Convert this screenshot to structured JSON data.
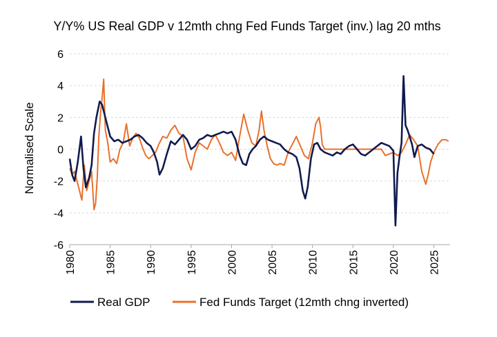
{
  "chart_data": {
    "type": "line",
    "title": "Y/Y% US Real GDP v 12mth chng Fed Funds Target (inv.) lag 20 mths",
    "ylabel": "Normalised Scale",
    "xlabel": "",
    "xlim": [
      1980,
      2027
    ],
    "ylim": [
      -6,
      6
    ],
    "yticks": [
      "6",
      "4",
      "2",
      "0",
      "-2",
      "-4",
      "-6"
    ],
    "xticks": [
      "1980",
      "1985",
      "1990",
      "1995",
      "2000",
      "2005",
      "2010",
      "2015",
      "2020",
      "2025"
    ],
    "grid": "horizontal dashed",
    "legend_position": "bottom",
    "colors": {
      "real_gdp": "#101a4e",
      "fed_funds": "#e8702a",
      "grid": "#d9d9d9",
      "axis": "#a6a6a6"
    },
    "series": [
      {
        "name": "Real GDP",
        "color": "#101a4e",
        "x": [
          1980.0,
          1980.3,
          1980.6,
          1981.0,
          1981.4,
          1981.7,
          1982.0,
          1982.4,
          1982.7,
          1983.0,
          1983.3,
          1983.7,
          1984.0,
          1984.3,
          1984.7,
          1985.0,
          1985.5,
          1986.0,
          1986.5,
          1987.0,
          1987.5,
          1988.0,
          1988.5,
          1989.0,
          1989.5,
          1990.0,
          1990.4,
          1990.8,
          1991.1,
          1991.5,
          1992.0,
          1992.5,
          1993.0,
          1993.5,
          1994.0,
          1994.5,
          1995.0,
          1995.5,
          1996.0,
          1996.5,
          1997.0,
          1997.5,
          1998.0,
          1998.5,
          1999.0,
          1999.5,
          2000.0,
          2000.5,
          2001.0,
          2001.4,
          2001.8,
          2002.2,
          2002.6,
          2003.0,
          2003.5,
          2004.0,
          2004.5,
          2005.0,
          2005.5,
          2006.0,
          2006.5,
          2007.0,
          2007.5,
          2008.0,
          2008.4,
          2008.8,
          2009.1,
          2009.4,
          2009.8,
          2010.2,
          2010.6,
          2011.0,
          2011.5,
          2012.0,
          2012.5,
          2013.0,
          2013.5,
          2014.0,
          2014.5,
          2015.0,
          2015.5,
          2016.0,
          2016.5,
          2017.0,
          2017.5,
          2018.0,
          2018.5,
          2019.0,
          2019.5,
          2020.0,
          2020.25,
          2020.5,
          2020.75,
          2021.0,
          2021.25,
          2021.5,
          2021.75,
          2022.0,
          2022.3,
          2022.6,
          2023.0,
          2023.5,
          2024.0,
          2024.5,
          2025.0
        ],
        "y": [
          -0.6,
          -1.6,
          -2.0,
          -0.8,
          0.8,
          -1.2,
          -2.4,
          -1.8,
          -1.0,
          1.0,
          2.0,
          3.0,
          2.8,
          2.2,
          1.4,
          0.8,
          0.5,
          0.6,
          0.4,
          0.5,
          0.6,
          0.8,
          0.9,
          0.7,
          0.4,
          0.2,
          -0.2,
          -0.8,
          -1.6,
          -1.2,
          -0.3,
          0.5,
          0.3,
          0.6,
          0.9,
          0.6,
          0.0,
          0.2,
          0.6,
          0.7,
          0.9,
          0.8,
          0.9,
          1.0,
          1.1,
          1.0,
          1.1,
          0.6,
          -0.4,
          -0.9,
          -1.0,
          -0.3,
          0.0,
          0.2,
          0.6,
          0.8,
          0.6,
          0.5,
          0.4,
          0.3,
          0.0,
          -0.2,
          -0.3,
          -0.5,
          -1.2,
          -2.6,
          -3.1,
          -2.4,
          -0.6,
          0.3,
          0.4,
          0.0,
          -0.2,
          -0.3,
          -0.4,
          -0.2,
          -0.3,
          0.0,
          0.2,
          0.3,
          0.0,
          -0.3,
          -0.4,
          -0.2,
          0.0,
          0.2,
          0.4,
          0.3,
          0.2,
          -0.1,
          -4.8,
          -1.5,
          -0.5,
          0.4,
          4.6,
          1.5,
          1.2,
          0.8,
          0.3,
          -0.5,
          0.2,
          0.3,
          0.1,
          0.0,
          -0.3
        ]
      },
      {
        "name": "Fed Funds Target (12mth chng inverted)",
        "color": "#e8702a",
        "x": [
          1980.0,
          1980.3,
          1980.6,
          1980.9,
          1981.2,
          1981.5,
          1981.8,
          1982.1,
          1982.4,
          1982.7,
          1983.0,
          1983.2,
          1983.4,
          1983.6,
          1983.8,
          1984.0,
          1984.2,
          1984.4,
          1984.7,
          1985.0,
          1985.4,
          1985.8,
          1986.2,
          1986.6,
          1987.0,
          1987.4,
          1987.8,
          1988.2,
          1988.6,
          1989.0,
          1989.4,
          1989.8,
          1990.2,
          1990.6,
          1991.0,
          1991.5,
          1992.0,
          1992.5,
          1993.0,
          1993.5,
          1994.0,
          1994.5,
          1995.0,
          1995.5,
          1996.0,
          1996.5,
          1997.0,
          1997.5,
          1998.0,
          1998.5,
          1999.0,
          1999.5,
          2000.0,
          2000.5,
          2001.0,
          2001.5,
          2002.0,
          2002.5,
          2003.0,
          2003.4,
          2003.7,
          2004.0,
          2004.4,
          2004.8,
          2005.2,
          2005.6,
          2006.0,
          2006.5,
          2007.0,
          2007.5,
          2008.0,
          2008.5,
          2009.0,
          2009.5,
          2010.0,
          2010.4,
          2010.8,
          2011.0,
          2011.2,
          2011.5,
          2012.0,
          2013.0,
          2014.0,
          2015.0,
          2016.0,
          2016.5,
          2017.0,
          2017.5,
          2018.0,
          2018.5,
          2019.0,
          2019.5,
          2020.0,
          2020.5,
          2021.0,
          2021.5,
          2022.0,
          2022.5,
          2023.0,
          2023.5,
          2024.0,
          2024.3,
          2024.6,
          2025.0,
          2025.5,
          2026.0,
          2026.5,
          2026.8
        ],
        "y": [
          -1.2,
          -1.6,
          -1.4,
          -2.0,
          -2.6,
          -3.2,
          -1.0,
          -2.6,
          -2.0,
          -1.4,
          -3.8,
          -3.4,
          -1.8,
          0.8,
          2.2,
          3.2,
          4.4,
          1.2,
          0.4,
          -0.8,
          -0.6,
          -0.9,
          0.0,
          0.4,
          1.6,
          0.2,
          0.7,
          1.0,
          0.7,
          0.1,
          -0.4,
          -0.6,
          -0.4,
          -0.2,
          0.3,
          0.8,
          0.7,
          1.2,
          1.5,
          1.0,
          0.8,
          -0.6,
          -1.3,
          -0.2,
          0.4,
          0.2,
          0.0,
          0.6,
          0.9,
          0.4,
          -0.2,
          -0.4,
          -0.2,
          -0.7,
          0.8,
          2.2,
          1.2,
          0.4,
          0.2,
          1.2,
          2.4,
          1.2,
          0.2,
          -0.6,
          -0.9,
          -1.0,
          -0.9,
          -1.0,
          -0.2,
          0.3,
          0.8,
          0.2,
          -0.4,
          -0.6,
          0.4,
          1.6,
          2.0,
          1.4,
          0.3,
          0.0,
          0.0,
          0.0,
          0.0,
          0.0,
          0.0,
          0.0,
          0.0,
          0.0,
          0.0,
          0.0,
          -0.4,
          -0.3,
          -0.2,
          -0.4,
          -0.2,
          0.3,
          0.9,
          0.6,
          0.2,
          -1.4,
          -2.2,
          -1.6,
          -0.8,
          -0.2,
          0.3,
          0.6,
          0.6,
          0.5
        ]
      }
    ]
  }
}
